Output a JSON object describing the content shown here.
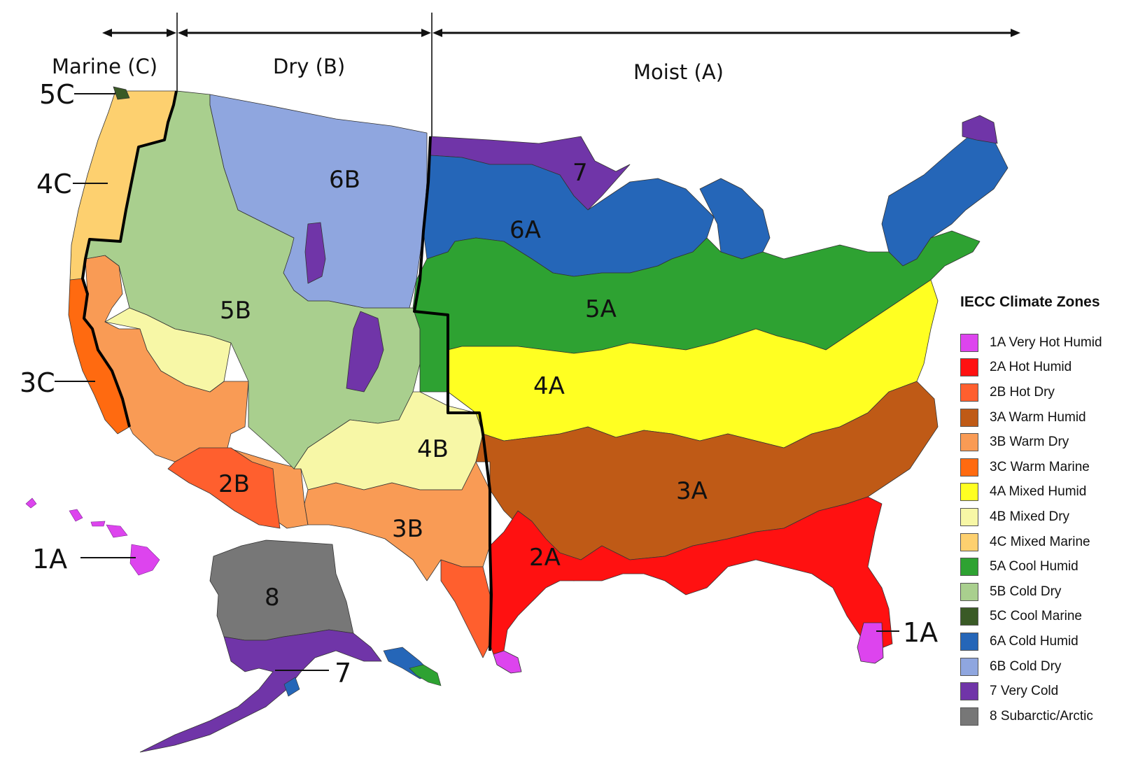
{
  "title": "IECC Climate Zones",
  "moisture_regimes": [
    {
      "label": "Marine (C)",
      "code": "C"
    },
    {
      "label": "Dry (B)",
      "code": "B"
    },
    {
      "label": "Moist (A)",
      "code": "A"
    }
  ],
  "map_labels": {
    "z6B": "6B",
    "z7": "7",
    "z6A": "6A",
    "z5A": "5A",
    "z5B": "5B",
    "z4A": "4A",
    "z4B": "4B",
    "z3A": "3A",
    "z3B": "3B",
    "z2A": "2A",
    "z2B": "2B",
    "z8": "8"
  },
  "callouts": {
    "c5C": "5C",
    "c4C": "4C",
    "c3C": "3C",
    "c1A_hawaii": "1A",
    "c1A_florida": "1A",
    "c7_alaska": "7"
  },
  "colors": {
    "1A": "#dd44ee",
    "2A": "#ff1111",
    "2B": "#ff5f2e",
    "3A": "#bf5a16",
    "3B": "#f99b55",
    "3C": "#ff6a10",
    "4A": "#ffff22",
    "4B": "#f7f7a6",
    "4C": "#fdd06f",
    "5A": "#2ea232",
    "5B": "#a9cf8e",
    "5C": "#3a5a26",
    "6A": "#2566b8",
    "6B": "#8fa6df",
    "7": "#7035a8",
    "8": "#777777"
  },
  "legend": {
    "title": "IECC Climate Zones",
    "items": [
      {
        "code": "1A",
        "label": "1A Very Hot Humid",
        "color": "#dd44ee"
      },
      {
        "code": "2A",
        "label": "2A Hot Humid",
        "color": "#ff1111"
      },
      {
        "code": "2B",
        "label": "2B Hot Dry",
        "color": "#ff5f2e"
      },
      {
        "code": "3A",
        "label": "3A Warm Humid",
        "color": "#bf5a16"
      },
      {
        "code": "3B",
        "label": "3B Warm Dry",
        "color": "#f99b55"
      },
      {
        "code": "3C",
        "label": "3C Warm Marine",
        "color": "#ff6a10"
      },
      {
        "code": "4A",
        "label": "4A Mixed Humid",
        "color": "#ffff22"
      },
      {
        "code": "4B",
        "label": "4B Mixed Dry",
        "color": "#f7f7a6"
      },
      {
        "code": "4C",
        "label": "4C Mixed Marine",
        "color": "#fdd06f"
      },
      {
        "code": "5A",
        "label": "5A Cool Humid",
        "color": "#2ea232"
      },
      {
        "code": "5B",
        "label": "5B Cold Dry",
        "color": "#a9cf8e"
      },
      {
        "code": "5C",
        "label": "5C Cool Marine",
        "color": "#3a5a26"
      },
      {
        "code": "6A",
        "label": "6A Cold Humid",
        "color": "#2566b8"
      },
      {
        "code": "6B",
        "label": "6B Cold Dry",
        "color": "#8fa6df"
      },
      {
        "code": "7",
        "label": "7 Very Cold",
        "color": "#7035a8"
      },
      {
        "code": "8",
        "label": "8 Subarctic/Arctic",
        "color": "#777777"
      }
    ]
  }
}
